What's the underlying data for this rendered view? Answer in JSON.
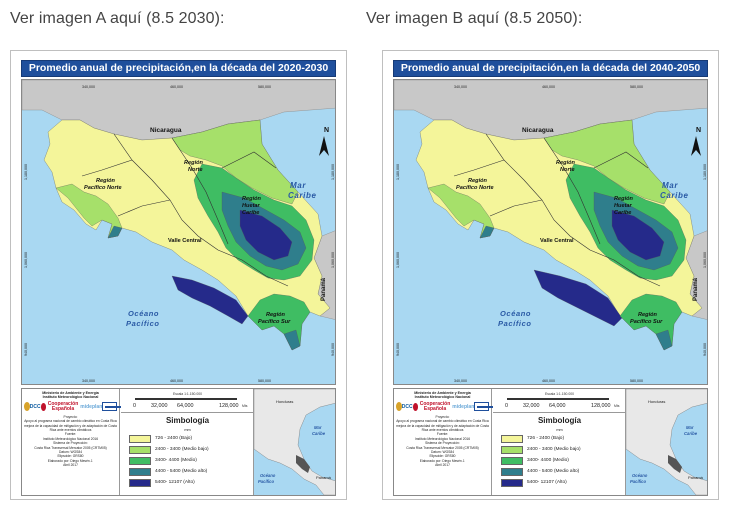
{
  "captions": {
    "a": "Ver imagen A aquí (8.5 2030):",
    "b": "Ver imagen B aquí (8.5 2050):"
  },
  "maps": [
    {
      "title": "Promedio anual de precipitación,en la década del 2020-2030",
      "zone_levels": [
        "bajo",
        "medio_bajo",
        "medio",
        "medio_alto",
        "alto"
      ]
    },
    {
      "title": "Promedio anual de precipitación,en la década del 2040-2050",
      "zone_levels": [
        "bajo",
        "medio_bajo",
        "medio",
        "medio_alto",
        "alto"
      ]
    }
  ],
  "map_labels": {
    "nicaragua": "Nicaragua",
    "region_norte_1": "Región",
    "region_norte_2": "Norte",
    "region_pacifico_norte_1": "Región",
    "region_pacifico_norte_2": "Pacífico Norte",
    "mar_caribe_1": "Mar",
    "mar_caribe_2": "Caribe",
    "region_huetar_1": "Región",
    "region_huetar_2": "Huetar",
    "region_huetar_3": "Caribe",
    "valle_central": "Valle Central",
    "oceano_1": "Océano",
    "oceano_2": "Pacífico",
    "region_pacifico_sur_1": "Región",
    "region_pacifico_sur_2": "Pacífico Sur",
    "panama": "Panamá",
    "north": "N"
  },
  "coordinates": {
    "top": [
      "340,000",
      "460,000",
      "580,000"
    ],
    "bottom": [
      "340,000",
      "460,000",
      "580,000"
    ],
    "left": [
      "1,180,000",
      "1,060,000",
      "940,000"
    ],
    "right": [
      "1,180,000",
      "1,060,000",
      "940,000"
    ]
  },
  "credits": {
    "ministry": "Ministerio de Ambiente y Energía",
    "institute": "Instituto Meteorológico Nacional",
    "logo_dcc": "DCC",
    "logo_coop": "Cooperación Española",
    "logo_mg": "mideplan",
    "proyecto_label": "Proyecto:",
    "proyecto_text": "Apoyo al programa nacional de cambio climático en Costa Rica mejora de la capacidad de mitigación y de adaptación de Costa Rica ante eventos climáticos",
    "fuente_label": "Fuente:",
    "fuente_text": "Instituto Meteorológico Nacional 2016",
    "proyeccion_label": "Sistema de Proyección:",
    "proyeccion_text": "Costa Rica Transversal Mercator 2005 (CRTM05)",
    "datum": "Datum: WGS84",
    "elipsoide": "Elipsoide: GRS80",
    "elaborado": "Elaborado por: Diego Mesén J.",
    "fecha": "Abril 2017"
  },
  "scale": {
    "label": "Escala 1:1.150.000",
    "ticks": [
      "0",
      "32,000",
      "64,000",
      "128,000"
    ],
    "unit": "Mts"
  },
  "legend": {
    "title": "Simbología",
    "unit": "mm",
    "items": [
      {
        "label": "726 - 2400 (Bajo)",
        "color": "#f4f59a"
      },
      {
        "label": "2400 - 3400 (Medio bajo)",
        "color": "#a6e06a"
      },
      {
        "label": "3400- 4400 (Medio)",
        "color": "#3fbd63"
      },
      {
        "label": "4400 - 5400 (Medio alto)",
        "color": "#2f7e8c"
      },
      {
        "label": "5400- 12107 (Alto)",
        "color": "#252a8a"
      }
    ]
  },
  "inset": {
    "honduras": "Honduras",
    "mar_1": "Mar",
    "mar_2": "Caribe",
    "oceano_1": "Océano",
    "oceano_2": "Pacífico",
    "panama": "Panamá"
  },
  "colors": {
    "sea": "#a9d8f2",
    "land_gray": "#c8c8c8",
    "title_bg": "#1f4f9c"
  }
}
